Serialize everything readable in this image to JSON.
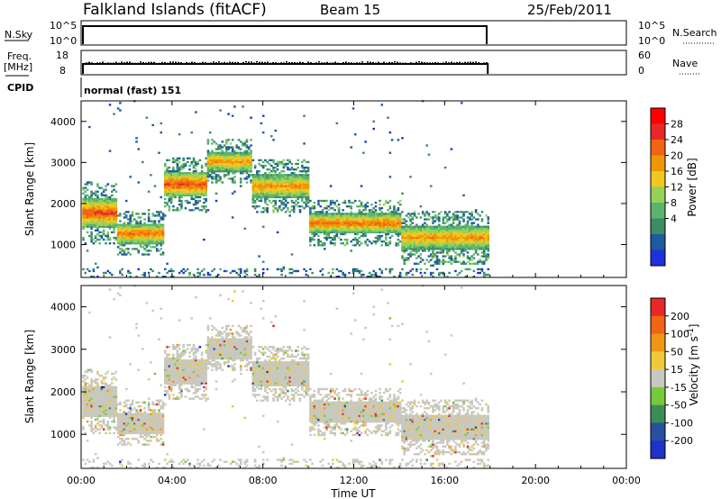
{
  "header": {
    "station": "Falkland Islands (fitACF)",
    "beam": "Beam 15",
    "date": "25/Feb/2011"
  },
  "time_axis": {
    "label": "Time UT",
    "range_hours": [
      0,
      24
    ],
    "ticks": [
      "00:00",
      "04:00",
      "08:00",
      "12:00",
      "16:00",
      "20:00",
      "00:00"
    ],
    "data_end_hours": 17.9
  },
  "strip_nsky": {
    "left_label": "N.Sky",
    "left_ticks": [
      "10^5",
      "10^0"
    ],
    "right_label": "N.Search",
    "right_ticks": [
      "10^5",
      "10^0"
    ],
    "legend_style": "dotted"
  },
  "strip_freq": {
    "left_label_1": "Freq.",
    "left_label_2": "[MHz]",
    "left_ticks": [
      "18",
      "8"
    ],
    "right_label": "Nave",
    "right_ticks": [
      "60",
      "0"
    ],
    "legend_style": "dotted"
  },
  "strip_cpid": {
    "left_label": "CPID",
    "program": "normal (fast) 151"
  },
  "power_panel": {
    "ylabel": "Slant Range [km]",
    "yticks": [
      "1000",
      "2000",
      "3000",
      "4000"
    ],
    "colorbar_label": "Power [dB]",
    "colorbar_ticks": [
      "28",
      "24",
      "20",
      "16",
      "12",
      "8",
      "4"
    ],
    "colors": [
      "#1e32dc",
      "#1e5aa0",
      "#3c8c64",
      "#5ab46e",
      "#96d25a",
      "#f0c81e",
      "#f0960a",
      "#f06414",
      "#e62828",
      "#ff0000"
    ]
  },
  "velocity_panel": {
    "ylabel": "Slant Range [km]",
    "yticks": [
      "1000",
      "2000",
      "3000",
      "4000"
    ],
    "colorbar_label": "Velocity [m s",
    "colorbar_unit_exp": "-1",
    "colorbar_label_end": "]",
    "colorbar_ticks": [
      "200",
      "100",
      "50",
      "15",
      "-15",
      "-50",
      "-100",
      "-200"
    ],
    "colors": [
      "#1e32c8",
      "#2850a0",
      "#3c8c5a",
      "#78c83c",
      "#c8c8be",
      "#f0c83c",
      "#f09614",
      "#f06414",
      "#e62828"
    ]
  },
  "chart_data": {
    "type": "heatmap",
    "x_units": "hours UT",
    "y_units": "km",
    "xlim": [
      0,
      24
    ],
    "ylim": [
      200,
      4500
    ],
    "power_echo_bands": [
      {
        "t_start": 0.0,
        "t_end": 1.5,
        "range_center": 1750,
        "halfwidth": 350,
        "peak_db": 26
      },
      {
        "t_start": 1.5,
        "t_end": 3.6,
        "range_center": 1250,
        "halfwidth": 250,
        "peak_db": 24
      },
      {
        "t_start": 3.0,
        "t_end": 5.5,
        "range_center": 2450,
        "halfwidth": 300,
        "peak_db": 26
      },
      {
        "t_start": 5.5,
        "t_end": 7.5,
        "range_center": 3000,
        "halfwidth": 250,
        "peak_db": 22
      },
      {
        "t_start": 7.5,
        "t_end": 10.0,
        "range_center": 2400,
        "halfwidth": 300,
        "peak_db": 22
      },
      {
        "t_start": 10.0,
        "t_end": 14.0,
        "range_center": 1500,
        "halfwidth": 250,
        "peak_db": 24
      },
      {
        "t_start": 14.0,
        "t_end": 17.9,
        "range_center": 1150,
        "halfwidth": 300,
        "peak_db": 22
      }
    ],
    "velocity_dominant_value": 0
  }
}
